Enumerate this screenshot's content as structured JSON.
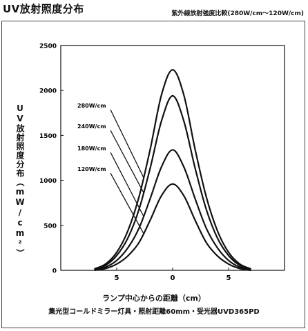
{
  "header": {
    "title": "UV放射照度分布",
    "subtitle": "紫外線放射強度比較(280W/cm〜120W/cm)"
  },
  "footer": {
    "note": "集光型コールドミラー灯具・照射距離60mm・受光器UVD365PD"
  },
  "chart_data": {
    "type": "line",
    "title": "UV放射照度分布",
    "subtitle": "紫外線放射強度比較(280W/cm〜120W/cm)",
    "xlabel": "ランプ中心からの距離（cm）",
    "ylabel": "UV放射照度分布（mW/cm²）",
    "xlim": [
      -10,
      10
    ],
    "ylim": [
      0,
      2500
    ],
    "xticks": [
      -5,
      0,
      5
    ],
    "xtick_labels": [
      "5",
      "0",
      "5"
    ],
    "yticks": [
      0,
      500,
      1000,
      1500,
      2000,
      2500
    ],
    "grid": false,
    "legend": "inline labels with leader lines, left of curves",
    "x": [
      -7,
      -6,
      -5,
      -4,
      -3,
      -2,
      -1,
      0,
      1,
      2,
      3,
      4,
      5,
      6,
      7
    ],
    "series": [
      {
        "name": "280W/cm",
        "values": [
          15,
          70,
          200,
          440,
          820,
          1350,
          1950,
          2230,
          1950,
          1350,
          820,
          440,
          200,
          70,
          15
        ]
      },
      {
        "name": "240W/cm",
        "values": [
          10,
          55,
          165,
          360,
          680,
          1140,
          1660,
          1940,
          1660,
          1140,
          680,
          360,
          165,
          55,
          10
        ]
      },
      {
        "name": "180W/cm",
        "values": [
          5,
          35,
          110,
          250,
          470,
          800,
          1150,
          1340,
          1150,
          800,
          470,
          250,
          110,
          35,
          5
        ]
      },
      {
        "name": "120W/cm",
        "values": [
          0,
          20,
          70,
          160,
          310,
          560,
          830,
          960,
          830,
          560,
          310,
          160,
          70,
          20,
          0
        ]
      }
    ]
  }
}
